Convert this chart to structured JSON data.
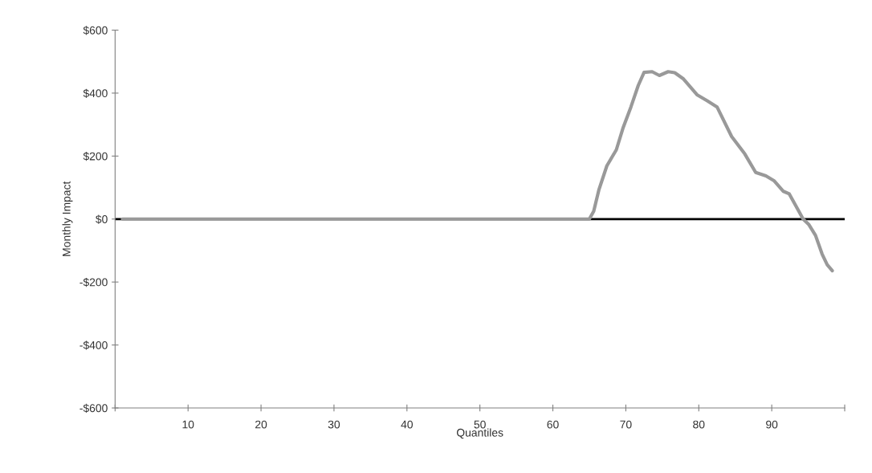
{
  "chart_data": {
    "type": "line",
    "xlabel": "Quantiles",
    "ylabel": "Monthly Impact",
    "series": [
      {
        "color": "#999999",
        "x": [
          1,
          65,
          65.6,
          66.3,
          67.4,
          68.7,
          69.6,
          70.7,
          71.7,
          72.5,
          73.6,
          74.6,
          75.8,
          76.7,
          77.9,
          79.8,
          81.2,
          82.5,
          84.5,
          86.3,
          87.8,
          89.2,
          90.3,
          91.6,
          92.4,
          94.3,
          95.1,
          96,
          96.9,
          97.6,
          98.3
        ],
        "values": [
          0,
          0,
          25,
          92,
          169,
          220,
          288,
          356,
          424,
          466,
          468,
          456,
          468,
          465,
          445,
          394,
          375,
          356,
          262,
          207,
          148,
          137,
          122,
          88,
          80,
          0,
          -18,
          -52,
          -111,
          -145,
          -164
        ]
      }
    ],
    "xlim": [
      0,
      100
    ],
    "xticks": [
      {
        "value": 0,
        "label": null
      },
      10,
      20,
      30,
      40,
      50,
      60,
      70,
      80,
      90,
      {
        "value": 100,
        "label": null
      }
    ],
    "ylim": [
      -600,
      600
    ],
    "yticks": [
      {
        "value": -600,
        "label": "-$600"
      },
      {
        "value": -400,
        "label": "-$400"
      },
      {
        "value": -200,
        "label": "-$200"
      },
      {
        "value": 0,
        "label": "$0"
      },
      {
        "value": 200,
        "label": "$200"
      },
      {
        "value": 400,
        "label": "$400"
      },
      {
        "value": 600,
        "label": "$600"
      }
    ],
    "ref_lines": [
      {
        "axis": "y",
        "value": 0,
        "label": null,
        "color": "#000000"
      }
    ],
    "grid": false,
    "legend": false,
    "marker": "none",
    "line_style": "solid"
  }
}
